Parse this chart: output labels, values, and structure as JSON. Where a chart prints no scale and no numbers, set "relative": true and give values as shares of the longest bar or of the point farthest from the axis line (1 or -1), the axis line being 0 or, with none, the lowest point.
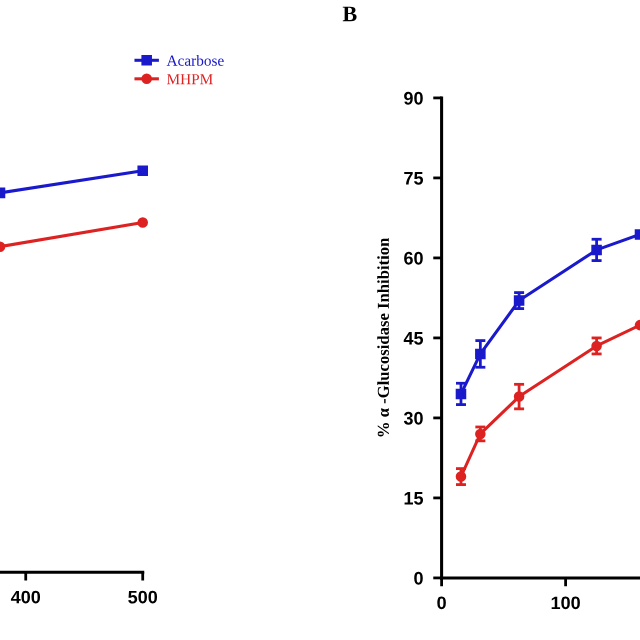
{
  "chart_data": [
    {
      "type": "line",
      "relative": true,
      "x": [
        378,
        500
      ],
      "xlim": [
        378,
        500
      ],
      "xticks": [
        400,
        500
      ],
      "legend": "top right",
      "tick_labels": "x",
      "series": [
        {
          "name": "Acarbose",
          "color": "#1a1acc",
          "marker": "square",
          "values": [
            0.945,
            1
          ]
        },
        {
          "name": "MHPM",
          "color": "#dd2222",
          "marker": "circle",
          "values": [
            0.811,
            0.871
          ]
        }
      ]
    },
    {
      "type": "line",
      "title": "B",
      "ylabel": "% α -Glucosidase Inhibition",
      "x": [
        15.625,
        31.25,
        62.5,
        125,
        160
      ],
      "xlim": [
        0,
        160
      ],
      "xticks": [
        0,
        100
      ],
      "ylim": [
        0,
        90
      ],
      "yticks": [
        0,
        15,
        30,
        45,
        60,
        75,
        90
      ],
      "series": [
        {
          "color": "#1a1acc",
          "marker": "square",
          "values": [
            34.5,
            42,
            52,
            61.5,
            64.4
          ],
          "errors": [
            2,
            2.5,
            1.5,
            2,
            null
          ]
        },
        {
          "color": "#dd2222",
          "marker": "circle",
          "values": [
            19,
            27,
            34,
            43.5,
            47.4
          ],
          "errors": [
            1.5,
            1.3,
            2.3,
            1.5,
            null
          ]
        }
      ]
    }
  ]
}
